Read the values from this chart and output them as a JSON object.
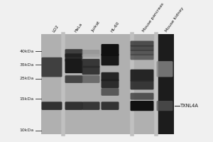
{
  "fig_bg": "#f0f0f0",
  "blot_bg": "#b8b8b8",
  "lane_labels": [
    "LO2",
    "HeLa",
    "Jurkat",
    "HL-60",
    "Mouse pancreas",
    "Mouse kidney"
  ],
  "mw_labels": [
    "40kDa",
    "35kDa",
    "25kDa",
    "15kDa",
    "10kDa"
  ],
  "txnl4a_label": "TXNL4A",
  "left_margin_bg": "#e0e0e0",
  "white_sep_color": "#d0d0d0",
  "dark_lane_bg": "#1c1c1c"
}
